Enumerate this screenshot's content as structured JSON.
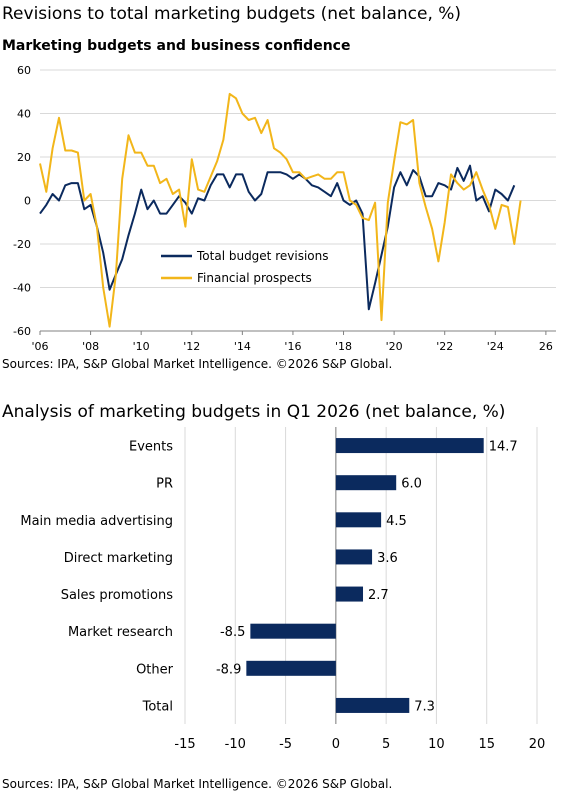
{
  "header": {
    "title": "Revisions to total marketing budgets (net balance, %)",
    "subtitle": "Marketing budgets and business confidence",
    "source_top": "Sources: IPA, S&P Global Market Intelligence. ©2026 S&P Global.",
    "bar_title": "Analysis of marketing budgets in Q1 2026 (net balance, %)",
    "source_bottom": "Sources: IPA, S&P Global Market Intelligence. ©2026 S&P Global."
  },
  "colors": {
    "navy": "#0b2a5e",
    "gold": "#f2b61a",
    "grid": "#d9d9d9",
    "axis": "#808080"
  },
  "chart_data": [
    {
      "type": "line",
      "title": "Marketing budgets and business confidence",
      "x_start": 2006.0,
      "x_step": 0.25,
      "xlim": [
        2006,
        2026.4
      ],
      "ylim": [
        -60,
        60
      ],
      "yticks": [
        60,
        40,
        20,
        0,
        -20,
        -40,
        -60
      ],
      "xticks": [
        {
          "value": 2006,
          "label": "'06"
        },
        {
          "value": 2008,
          "label": "'08"
        },
        {
          "value": 2010,
          "label": "'10"
        },
        {
          "value": 2012,
          "label": "'12"
        },
        {
          "value": 2014,
          "label": "'14"
        },
        {
          "value": 2016,
          "label": "'16"
        },
        {
          "value": 2018,
          "label": "'18"
        },
        {
          "value": 2020,
          "label": "'20"
        },
        {
          "value": 2022,
          "label": "'22"
        },
        {
          "value": 2024,
          "label": "'24"
        },
        {
          "value": 2026,
          "label": "26"
        }
      ],
      "grid": true,
      "legend": "bottom-center",
      "series": [
        {
          "name": "Total budget revisions",
          "color": "#0b2a5e",
          "values": [
            -6,
            -2,
            3,
            0,
            7,
            8,
            8,
            -4,
            -2,
            -12,
            -24,
            -41,
            -34,
            -27,
            -16,
            -6,
            5,
            -4,
            0,
            -6,
            -6,
            -2,
            2,
            -1,
            -6,
            1,
            0,
            7,
            12,
            12,
            6,
            12,
            12,
            4,
            0,
            3,
            13,
            13,
            13,
            12,
            10,
            12,
            10,
            7,
            6,
            4,
            2,
            8,
            0,
            -2,
            0,
            -6,
            -50,
            -38,
            -25,
            -12,
            6,
            13,
            7,
            14,
            11,
            2,
            2,
            8,
            7,
            5,
            15,
            9,
            16,
            0,
            2,
            -5,
            5,
            3,
            0,
            7
          ]
        },
        {
          "name": "Financial prospects",
          "color": "#f2b61a",
          "values": [
            17,
            4,
            24,
            38,
            23,
            23,
            22,
            0,
            3,
            -12,
            -40,
            -58,
            -34,
            10,
            30,
            22,
            22,
            16,
            16,
            8,
            10,
            3,
            5,
            -12,
            19,
            5,
            4,
            11,
            18,
            28,
            49,
            47,
            40,
            37,
            38,
            31,
            37,
            24,
            22,
            19,
            13,
            13,
            10,
            11,
            12,
            10,
            10,
            13,
            13,
            0,
            -2,
            -8,
            -9,
            -1,
            -55,
            -1,
            18,
            36,
            35,
            37,
            8,
            -3,
            -13,
            -28,
            -10,
            12,
            8,
            5,
            7,
            13,
            5,
            -2,
            -13,
            -2,
            -3,
            -20,
            0
          ]
        }
      ]
    },
    {
      "type": "bar",
      "orientation": "horizontal",
      "title": "Analysis of marketing budgets in Q1 2026 (net balance, %)",
      "categories": [
        "Events",
        "PR",
        "Main media advertising",
        "Direct marketing",
        "Sales promotions",
        "Market research",
        "Other",
        "Total"
      ],
      "values": [
        14.7,
        6.0,
        4.5,
        3.6,
        2.7,
        -8.5,
        -8.9,
        7.3
      ],
      "value_labels": [
        "14.7",
        "6.0",
        "4.5",
        "3.6",
        "2.7",
        "-8.5",
        "-8.9",
        "7.3"
      ],
      "xlim": [
        -15,
        20
      ],
      "xticks": [
        -15,
        -10,
        -5,
        0,
        5,
        10,
        15,
        20
      ],
      "grid": true,
      "color": "#0b2a5e"
    }
  ]
}
